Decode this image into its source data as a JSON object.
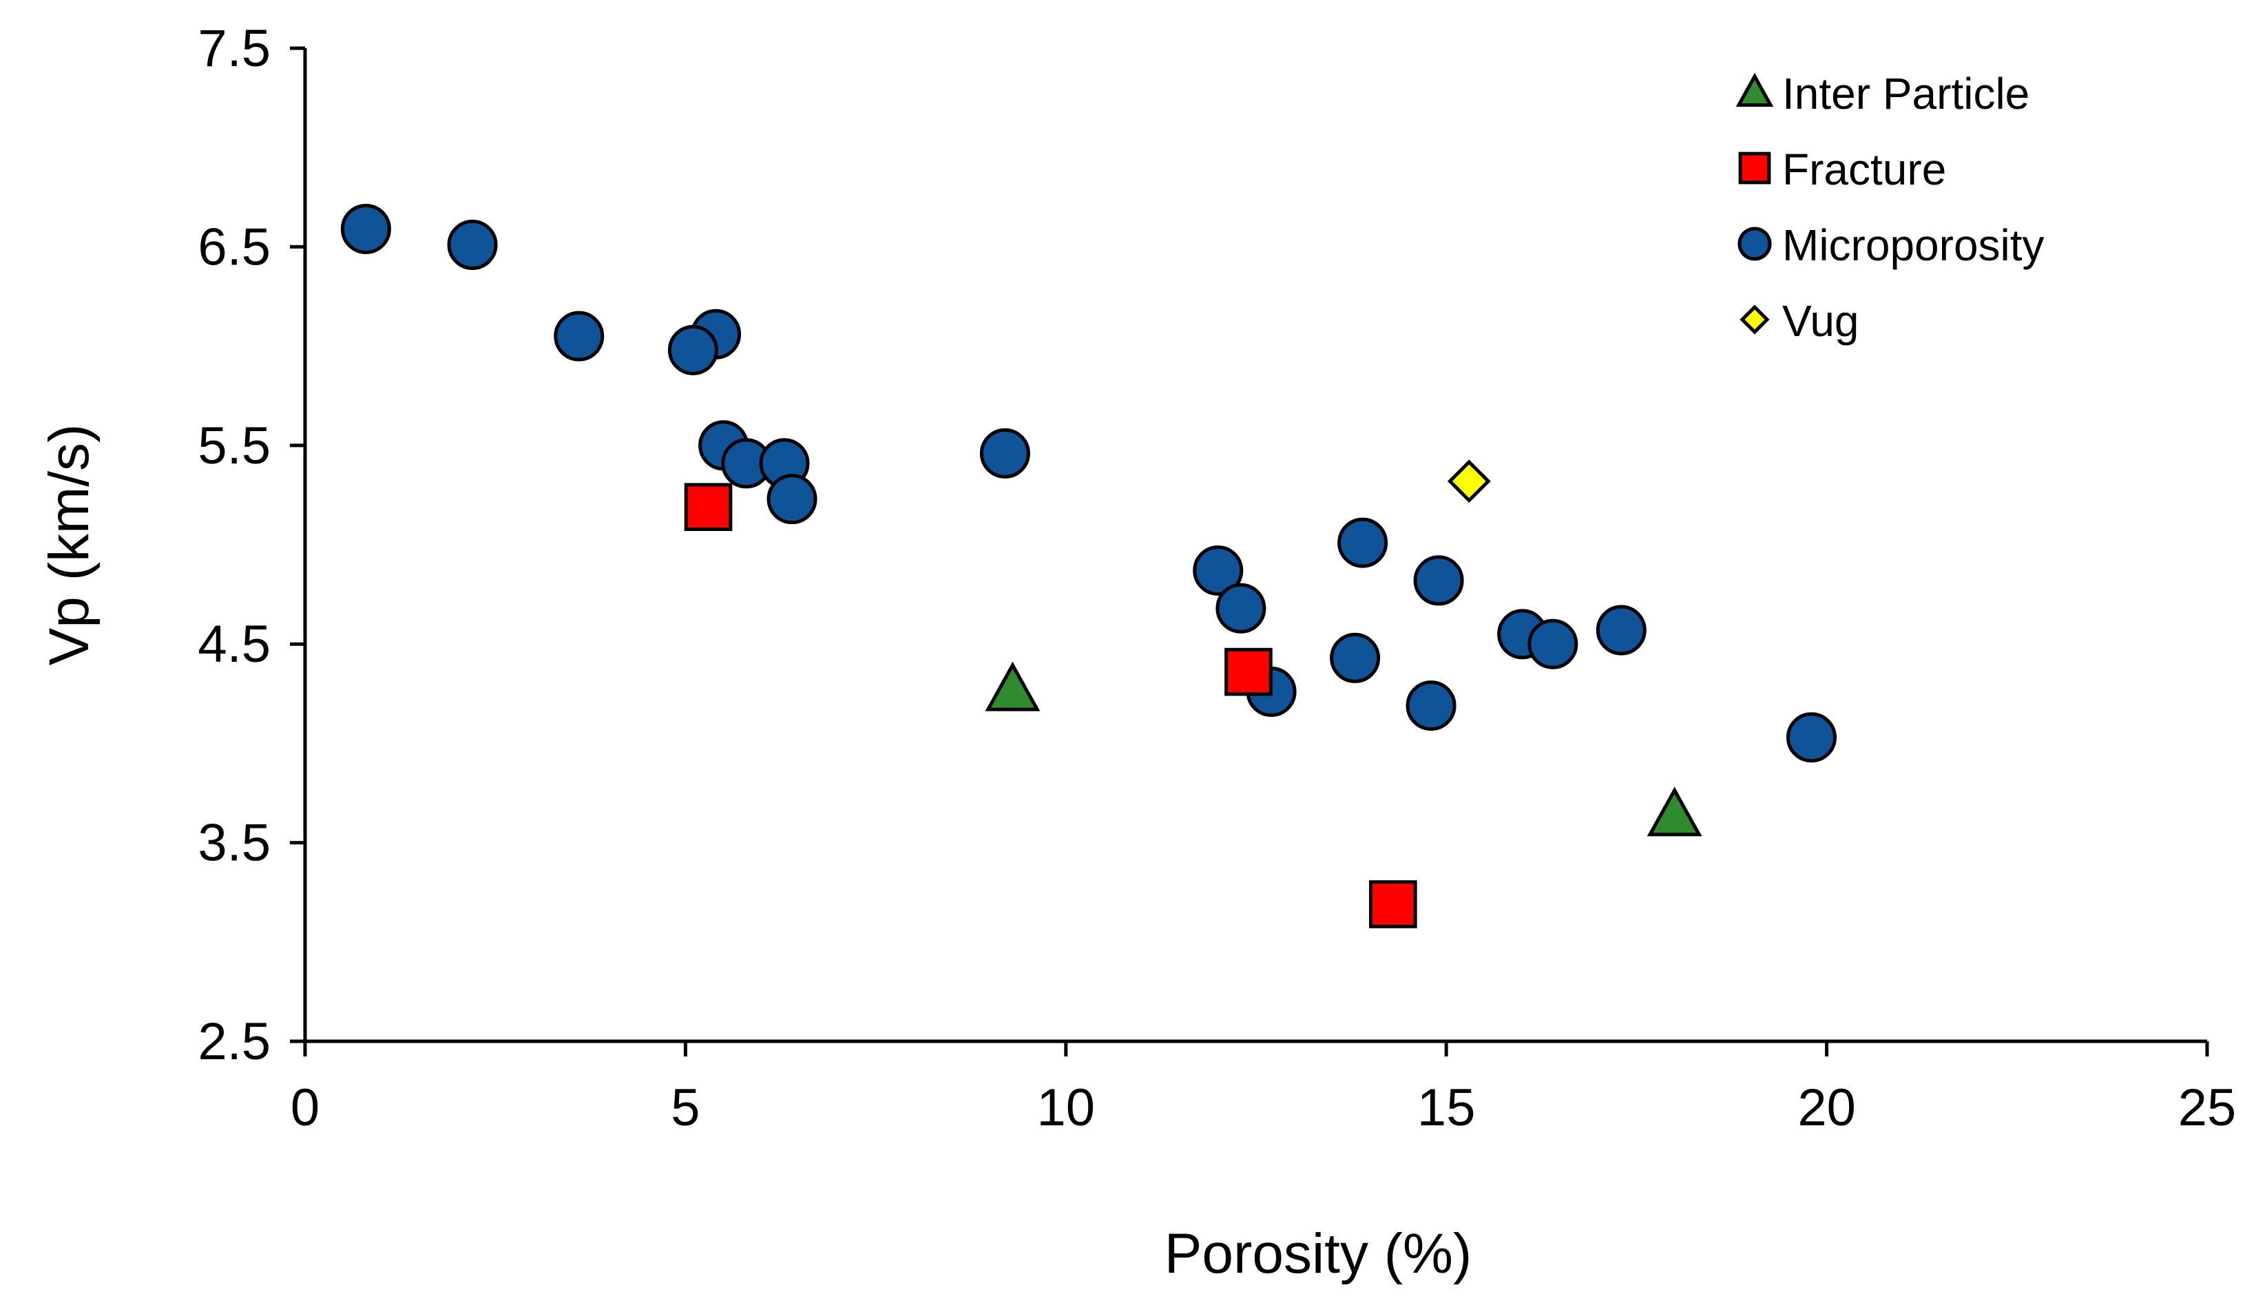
{
  "chart_data": {
    "type": "scatter",
    "title": "",
    "xlabel": "Porosity (%)",
    "ylabel": "Vp (km/s)",
    "xlim": [
      0,
      25
    ],
    "ylim": [
      2.5,
      7.5
    ],
    "xticks": [
      0,
      5,
      10,
      15,
      20,
      25
    ],
    "yticks": [
      2.5,
      3.5,
      4.5,
      5.5,
      6.5,
      7.5
    ],
    "xtick_labels": [
      "0",
      "5",
      "10",
      "15",
      "20",
      "25"
    ],
    "ytick_labels": [
      "2.5",
      "3.5",
      "4.5",
      "5.5",
      "6.5",
      "7.5"
    ],
    "grid": false,
    "legend_position": "top-right",
    "series": [
      {
        "name": "Inter Particle",
        "marker": "triangle",
        "color": "#2e8b2e",
        "points": [
          {
            "x": 9.3,
            "y": 4.27
          },
          {
            "x": 18.0,
            "y": 3.64
          }
        ]
      },
      {
        "name": "Fracture",
        "marker": "square",
        "color": "#ff0000",
        "points": [
          {
            "x": 5.3,
            "y": 5.19
          },
          {
            "x": 12.4,
            "y": 4.36
          },
          {
            "x": 14.3,
            "y": 3.19
          }
        ]
      },
      {
        "name": "Microporosity",
        "marker": "circle",
        "color": "#0f5499",
        "points": [
          {
            "x": 0.8,
            "y": 6.59
          },
          {
            "x": 2.2,
            "y": 6.51
          },
          {
            "x": 3.6,
            "y": 6.05
          },
          {
            "x": 5.4,
            "y": 6.06
          },
          {
            "x": 5.1,
            "y": 5.98
          },
          {
            "x": 5.5,
            "y": 5.5
          },
          {
            "x": 5.8,
            "y": 5.41
          },
          {
            "x": 6.3,
            "y": 5.41
          },
          {
            "x": 6.4,
            "y": 5.23
          },
          {
            "x": 9.2,
            "y": 5.46
          },
          {
            "x": 12.0,
            "y": 4.87
          },
          {
            "x": 12.3,
            "y": 4.68
          },
          {
            "x": 12.7,
            "y": 4.26
          },
          {
            "x": 13.9,
            "y": 5.01
          },
          {
            "x": 13.8,
            "y": 4.43
          },
          {
            "x": 14.9,
            "y": 4.82
          },
          {
            "x": 14.8,
            "y": 4.19
          },
          {
            "x": 16.0,
            "y": 4.55
          },
          {
            "x": 16.4,
            "y": 4.5
          },
          {
            "x": 17.3,
            "y": 4.57
          },
          {
            "x": 19.8,
            "y": 4.03
          }
        ]
      },
      {
        "name": "Vug",
        "marker": "diamond",
        "color": "#ffff00",
        "points": [
          {
            "x": 15.3,
            "y": 5.32
          }
        ]
      }
    ]
  }
}
